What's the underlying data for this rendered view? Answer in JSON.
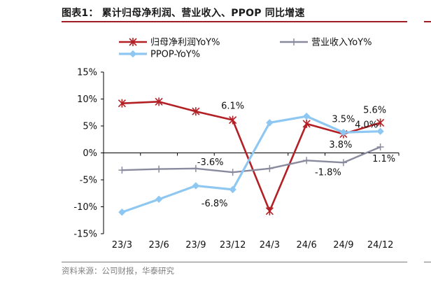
{
  "header": {
    "title": "图表1：  累计归母净利润、营业收入、PPOP 同比增速"
  },
  "footer": {
    "source": "资料来源：公司财报，华泰研究"
  },
  "chart_data": {
    "type": "line",
    "title": "图表1：  累计归母净利润、营业收入、PPOP 同比增速",
    "xlabel": "",
    "ylabel": "",
    "categories": [
      "23/3",
      "23/6",
      "23/9",
      "23/12",
      "24/3",
      "24/6",
      "24/9",
      "24/12"
    ],
    "ylim": [
      -15,
      15
    ],
    "yticks": [
      -15,
      -10,
      -5,
      0,
      5,
      10,
      15
    ],
    "ytick_labels": [
      "-15%",
      "-10%",
      "-5%",
      "0%",
      "5%",
      "10%",
      "15%"
    ],
    "grid": false,
    "legend_position": "top",
    "series": [
      {
        "name": "归母净利润YoY%",
        "color": "#b21f24",
        "marker": "asterisk",
        "values": [
          9.2,
          9.5,
          7.7,
          6.1,
          -10.8,
          5.4,
          3.5,
          5.6
        ],
        "labels": [
          null,
          null,
          null,
          "6.1%",
          null,
          null,
          "3.5%",
          "5.6%"
        ]
      },
      {
        "name": "营业收入YoY%",
        "color": "#8a8a9e",
        "marker": "plus",
        "values": [
          -3.2,
          -3.0,
          -2.9,
          -3.6,
          -2.9,
          -1.4,
          -1.8,
          1.1
        ],
        "labels": [
          null,
          null,
          null,
          "-3.6%",
          null,
          null,
          "-1.8%",
          "1.1%"
        ]
      },
      {
        "name": "PPOP-YoY%",
        "color": "#8ec8f2",
        "marker": "diamond",
        "values": [
          -11.0,
          -8.6,
          -6.1,
          -6.8,
          5.6,
          6.8,
          3.8,
          4.0
        ],
        "labels": [
          null,
          null,
          null,
          "-6.8%",
          null,
          null,
          "3.8%",
          "4.0%"
        ]
      }
    ]
  }
}
